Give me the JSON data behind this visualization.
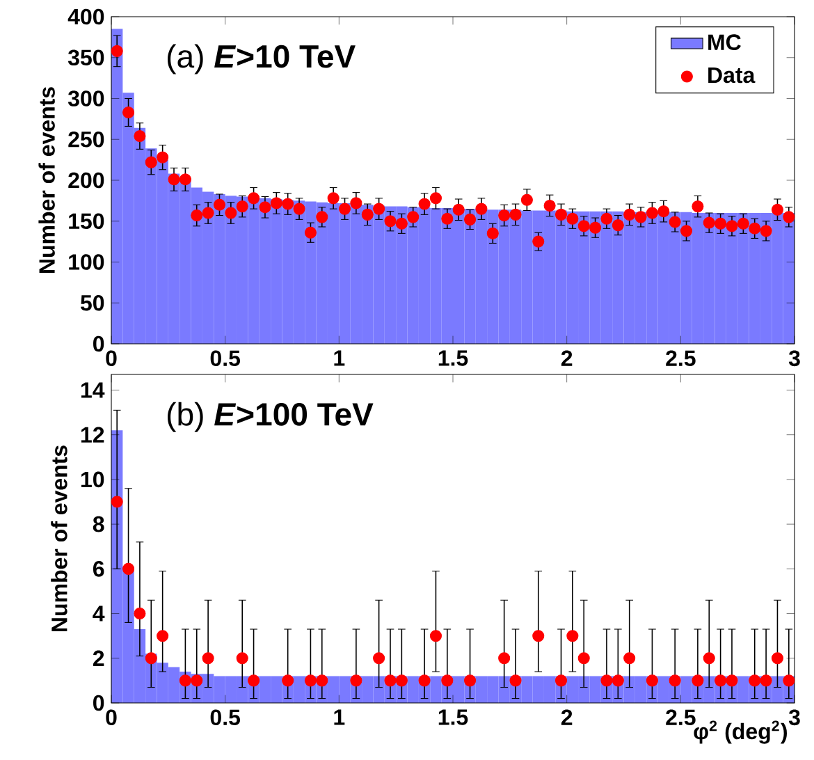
{
  "chart_data": [
    {
      "type": "histogram",
      "title": "(a) ***E*>10 TeV**",
      "ylabel": "Number of events",
      "xlim": [
        0,
        3
      ],
      "ylim": [
        0,
        400
      ],
      "xticks": [
        0,
        0.5,
        1,
        1.5,
        2,
        2.5,
        3
      ],
      "yticks": [
        0,
        50,
        100,
        150,
        200,
        250,
        300,
        350,
        400
      ],
      "legend": "top right",
      "marker": "circle",
      "series": [
        {
          "name": "MC",
          "color": "#7a7aff",
          "bins": [
            0,
            0.05,
            0.1,
            0.15,
            0.2,
            0.25,
            0.3,
            0.35,
            0.4,
            0.45,
            0.5,
            0.55,
            0.6,
            0.65,
            0.7,
            0.75,
            0.8,
            0.85,
            0.9,
            0.95,
            1,
            1.05,
            1.1,
            1.15,
            1.2,
            1.25,
            1.3,
            1.35,
            1.4,
            1.45,
            1.5,
            1.55,
            1.6,
            1.65,
            1.7,
            1.75,
            1.8,
            1.85,
            1.9,
            1.95,
            2,
            2.05,
            2.1,
            2.15,
            2.2,
            2.25,
            2.3,
            2.35,
            2.4,
            2.45,
            2.5,
            2.55,
            2.6,
            2.65,
            2.7,
            2.75,
            2.8,
            2.85,
            2.9,
            2.95,
            3
          ],
          "values": [
            385,
            307,
            264,
            239,
            225,
            208,
            200,
            191,
            186,
            183,
            181,
            180,
            179,
            178,
            177,
            176,
            175,
            174,
            173,
            172,
            172,
            171,
            170,
            169,
            168,
            168,
            167,
            167,
            166,
            166,
            165,
            165,
            165,
            164,
            164,
            164,
            163,
            163,
            163,
            163,
            162,
            162,
            162,
            162,
            162,
            161,
            161,
            161,
            161,
            161,
            161,
            160,
            160,
            160,
            160,
            160,
            160,
            160,
            160,
            160
          ]
        },
        {
          "name": "Data",
          "type": "scatter",
          "color": "#ff0000",
          "x": [
            0.025,
            0.075,
            0.125,
            0.175,
            0.225,
            0.275,
            0.325,
            0.375,
            0.425,
            0.475,
            0.525,
            0.575,
            0.625,
            0.675,
            0.725,
            0.775,
            0.825,
            0.875,
            0.925,
            0.975,
            1.025,
            1.075,
            1.125,
            1.175,
            1.225,
            1.275,
            1.325,
            1.375,
            1.425,
            1.475,
            1.525,
            1.575,
            1.625,
            1.675,
            1.725,
            1.775,
            1.825,
            1.875,
            1.925,
            1.975,
            2.025,
            2.075,
            2.125,
            2.175,
            2.225,
            2.275,
            2.325,
            2.375,
            2.425,
            2.475,
            2.525,
            2.575,
            2.625,
            2.675,
            2.725,
            2.775,
            2.825,
            2.875,
            2.925,
            2.975
          ],
          "values": [
            358,
            283,
            254,
            222,
            228,
            201,
            201,
            157,
            160,
            170,
            160,
            168,
            178,
            167,
            172,
            171,
            165,
            136,
            155,
            178,
            165,
            172,
            158,
            165,
            150,
            147,
            155,
            171,
            178,
            153,
            164,
            152,
            165,
            135,
            157,
            158,
            176,
            125,
            169,
            158,
            153,
            144,
            142,
            153,
            145,
            158,
            155,
            160,
            162,
            149,
            138,
            168,
            148,
            147,
            144,
            147,
            141,
            138,
            164,
            155
          ],
          "errors": [
            19,
            17,
            16,
            15,
            15,
            14,
            14,
            13,
            13,
            13,
            13,
            13,
            13,
            13,
            13,
            13,
            13,
            12,
            12,
            13,
            13,
            13,
            13,
            13,
            12,
            12,
            12,
            13,
            13,
            12,
            13,
            12,
            13,
            12,
            13,
            13,
            13,
            11,
            13,
            13,
            12,
            12,
            12,
            12,
            12,
            13,
            12,
            13,
            13,
            12,
            12,
            13,
            12,
            12,
            12,
            12,
            12,
            12,
            13,
            12
          ]
        }
      ]
    },
    {
      "type": "histogram",
      "title": "(b) ***E*>100 TeV**",
      "ylabel": "Number of events",
      "xlabel": "φ$^{2}$ (deg$^{2}$)",
      "xlim": [
        0,
        3
      ],
      "ylim": [
        0,
        14.7
      ],
      "xticks": [
        0,
        0.5,
        1,
        1.5,
        2,
        2.5,
        3
      ],
      "yticks": [
        0,
        2,
        4,
        6,
        8,
        10,
        12,
        14
      ],
      "marker": "circle",
      "series": [
        {
          "color": "#7a7aff",
          "bins": [
            0,
            0.05,
            0.1,
            0.15,
            0.2,
            0.25,
            0.3,
            0.35,
            0.4,
            0.45,
            0.5,
            0.55,
            0.6,
            0.65,
            0.7,
            0.75,
            0.8,
            0.85,
            0.9,
            0.95,
            1,
            1.05,
            1.1,
            1.15,
            1.2,
            1.25,
            1.3,
            1.35,
            1.4,
            1.45,
            1.5,
            1.55,
            1.6,
            1.65,
            1.7,
            1.75,
            1.8,
            1.85,
            1.9,
            1.95,
            2,
            2.05,
            2.1,
            2.15,
            2.2,
            2.25,
            2.3,
            2.35,
            2.4,
            2.45,
            2.5,
            2.55,
            2.6,
            2.65,
            2.7,
            2.75,
            2.8,
            2.85,
            2.9,
            2.95,
            3
          ],
          "values": [
            12.2,
            6.1,
            3.3,
            2.2,
            1.8,
            1.6,
            1.4,
            1.3,
            1.3,
            1.2,
            1.2,
            1.2,
            1.2,
            1.2,
            1.2,
            1.2,
            1.2,
            1.2,
            1.2,
            1.2,
            1.2,
            1.2,
            1.2,
            1.2,
            1.2,
            1.2,
            1.2,
            1.2,
            1.2,
            1.2,
            1.2,
            1.2,
            1.2,
            1.2,
            1.2,
            1.2,
            1.2,
            1.2,
            1.2,
            1.2,
            1.2,
            1.2,
            1.2,
            1.2,
            1.2,
            1.2,
            1.2,
            1.2,
            1.2,
            1.2,
            1.2,
            1.2,
            1.2,
            1.2,
            1.2,
            1.2,
            1.2,
            1.2,
            1.2,
            1.2
          ]
        },
        {
          "type": "scatter",
          "color": "#ff0000",
          "x": [
            0.025,
            0.075,
            0.125,
            0.175,
            0.225,
            0.275,
            0.325,
            0.375,
            0.425,
            0.475,
            0.525,
            0.575,
            0.625,
            0.675,
            0.725,
            0.775,
            0.825,
            0.875,
            0.925,
            0.975,
            1.025,
            1.075,
            1.125,
            1.175,
            1.225,
            1.275,
            1.325,
            1.375,
            1.425,
            1.475,
            1.525,
            1.575,
            1.625,
            1.675,
            1.725,
            1.775,
            1.825,
            1.875,
            1.925,
            1.975,
            2.025,
            2.075,
            2.125,
            2.175,
            2.225,
            2.275,
            2.325,
            2.375,
            2.425,
            2.475,
            2.525,
            2.575,
            2.625,
            2.675,
            2.725,
            2.775,
            2.825,
            2.875,
            2.925,
            2.975
          ],
          "values": [
            9,
            6,
            4,
            2,
            3,
            null,
            1,
            1,
            2,
            null,
            null,
            2,
            1,
            null,
            null,
            1,
            null,
            1,
            1,
            null,
            null,
            1,
            null,
            2,
            1,
            1,
            null,
            1,
            3,
            1,
            null,
            1,
            null,
            null,
            2,
            1,
            null,
            3,
            null,
            1,
            3,
            2,
            null,
            1,
            1,
            2,
            null,
            1,
            null,
            1,
            null,
            1,
            2,
            1,
            1,
            null,
            1,
            1,
            2,
            1
          ],
          "errors": [
            [
              6,
              13.1
            ],
            [
              3.6,
              9.6
            ],
            [
              2.1,
              7.2
            ],
            [
              0.7,
              4.6
            ],
            [
              1.4,
              5.9
            ],
            null,
            [
              0.2,
              3.3
            ],
            [
              0.2,
              3.3
            ],
            [
              0.7,
              4.6
            ],
            null,
            null,
            [
              0.7,
              4.6
            ],
            [
              0.2,
              3.3
            ],
            null,
            null,
            [
              0.2,
              3.3
            ],
            null,
            [
              0.2,
              3.3
            ],
            [
              0.2,
              3.3
            ],
            null,
            null,
            [
              0.2,
              3.3
            ],
            null,
            [
              0.7,
              4.6
            ],
            [
              0.2,
              3.3
            ],
            [
              0.2,
              3.3
            ],
            null,
            [
              0.2,
              3.3
            ],
            [
              1.4,
              5.9
            ],
            [
              0.2,
              3.3
            ],
            null,
            [
              0.2,
              3.3
            ],
            null,
            null,
            [
              0.7,
              4.6
            ],
            [
              0.2,
              3.3
            ],
            null,
            [
              1.4,
              5.9
            ],
            null,
            [
              0.2,
              3.3
            ],
            [
              1.4,
              5.9
            ],
            [
              0.7,
              4.6
            ],
            null,
            [
              0.2,
              3.3
            ],
            [
              0.2,
              3.3
            ],
            [
              0.7,
              4.6
            ],
            null,
            [
              0.2,
              3.3
            ],
            null,
            [
              0.2,
              3.3
            ],
            null,
            [
              0.2,
              3.3
            ],
            [
              0.7,
              4.6
            ],
            [
              0.2,
              3.3
            ],
            [
              0.2,
              3.3
            ],
            null,
            [
              0.2,
              3.3
            ],
            [
              0.2,
              3.3
            ],
            [
              0.7,
              4.6
            ],
            [
              0.2,
              3.3
            ]
          ]
        }
      ]
    }
  ]
}
